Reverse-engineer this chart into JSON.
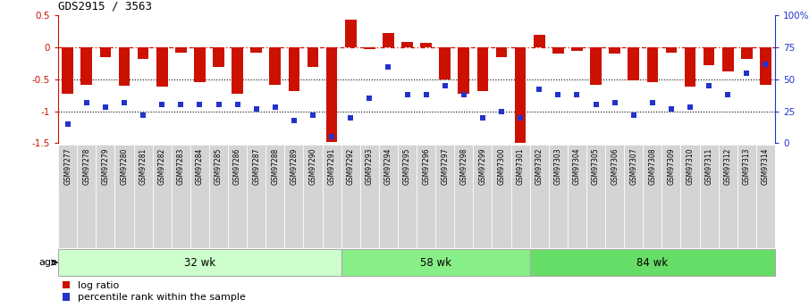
{
  "title": "GDS2915 / 3563",
  "samples": [
    "GSM97277",
    "GSM97278",
    "GSM97279",
    "GSM97280",
    "GSM97281",
    "GSM97282",
    "GSM97283",
    "GSM97284",
    "GSM97285",
    "GSM97286",
    "GSM97287",
    "GSM97288",
    "GSM97289",
    "GSM97290",
    "GSM97291",
    "GSM97292",
    "GSM97293",
    "GSM97294",
    "GSM97295",
    "GSM97296",
    "GSM97297",
    "GSM97298",
    "GSM97299",
    "GSM97300",
    "GSM97301",
    "GSM97302",
    "GSM97303",
    "GSM97304",
    "GSM97305",
    "GSM97306",
    "GSM97307",
    "GSM97308",
    "GSM97309",
    "GSM97310",
    "GSM97311",
    "GSM97312",
    "GSM97313",
    "GSM97314"
  ],
  "log_ratio": [
    -0.72,
    -0.58,
    -0.15,
    -0.6,
    -0.18,
    -0.62,
    -0.08,
    -0.55,
    -0.3,
    -0.72,
    -0.08,
    -0.58,
    -0.68,
    -0.3,
    -1.48,
    0.43,
    -0.03,
    0.23,
    0.08,
    0.07,
    -0.5,
    -0.72,
    -0.68,
    -0.15,
    -1.5,
    0.2,
    -0.1,
    -0.05,
    -0.58,
    -0.1,
    -0.52,
    -0.55,
    -0.08,
    -0.62,
    -0.28,
    -0.38,
    -0.18,
    -0.58
  ],
  "percentile": [
    15,
    32,
    28,
    32,
    22,
    30,
    30,
    30,
    30,
    30,
    27,
    28,
    18,
    22,
    5,
    20,
    35,
    60,
    38,
    38,
    45,
    38,
    20,
    25,
    20,
    42,
    38,
    38,
    30,
    32,
    22,
    32,
    27,
    28,
    45,
    38,
    55,
    62
  ],
  "groups": [
    {
      "label": "32 wk",
      "start": 0,
      "end": 14,
      "color": "#ccffcc"
    },
    {
      "label": "58 wk",
      "start": 15,
      "end": 24,
      "color": "#88ee88"
    },
    {
      "label": "84 wk",
      "start": 25,
      "end": 37,
      "color": "#66dd66"
    }
  ],
  "bar_color": "#cc1100",
  "dot_color": "#2233cc",
  "ylim_left": [
    -1.5,
    0.5
  ],
  "ylim_right": [
    0,
    100
  ],
  "hlines_dotted": [
    -0.5,
    -1.0
  ],
  "legend_items": [
    {
      "label": "log ratio",
      "color": "#cc1100"
    },
    {
      "label": "percentile rank within the sample",
      "color": "#2233cc"
    }
  ]
}
